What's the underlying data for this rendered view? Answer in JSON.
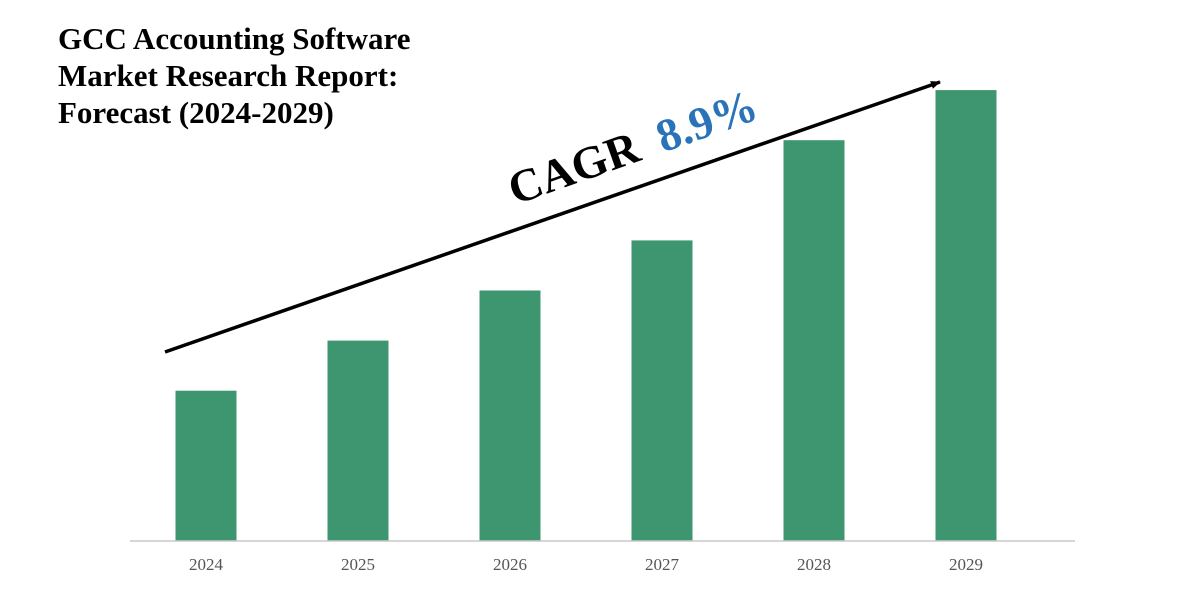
{
  "chart_data": {
    "type": "bar",
    "title_lines": [
      "GCC Accounting Software",
      "Market Research Report:",
      "Forecast (2024-2029)"
    ],
    "categories": [
      "2024",
      "2025",
      "2026",
      "2027",
      "2028",
      "2029"
    ],
    "values": [
      30,
      40,
      50,
      60,
      80,
      90
    ],
    "ylim": [
      0,
      100
    ],
    "annotation": {
      "label": "CAGR",
      "value": "8.9%"
    },
    "colors": {
      "bar": "#3e9670",
      "axis": "#c8c8c8",
      "arrow": "#000000",
      "cagr_label": "#000000",
      "cagr_value": "#2a73b8"
    },
    "legend": "none",
    "grid": false
  }
}
